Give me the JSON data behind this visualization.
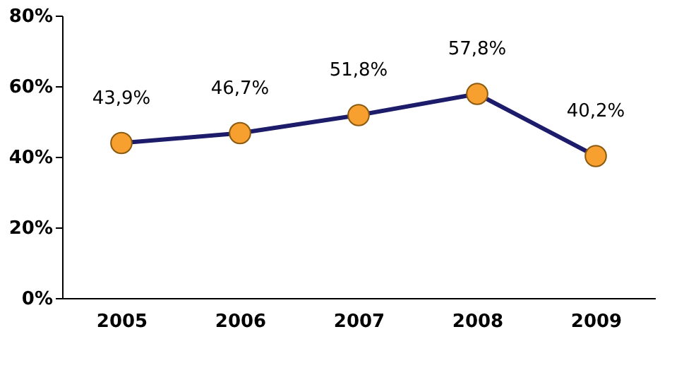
{
  "chart_data": {
    "type": "line",
    "categories": [
      "2005",
      "2006",
      "2007",
      "2008",
      "2009"
    ],
    "series": [
      {
        "color": "#1c1c6b",
        "values": [
          43.9,
          46.7,
          51.8,
          57.8,
          40.2
        ],
        "value_labels": [
          "43,9%",
          "46,7%",
          "51,8%",
          "57,8%",
          "40,2%"
        ]
      }
    ],
    "marker": "circle",
    "ylim": [
      0,
      80
    ],
    "yticks": [
      {
        "value": 0,
        "label": "0%"
      },
      {
        "value": 20,
        "label": "20%"
      },
      {
        "value": 40,
        "label": "40%"
      },
      {
        "value": 60,
        "label": "60%"
      },
      {
        "value": 80,
        "label": "80%"
      }
    ],
    "grid": false
  }
}
